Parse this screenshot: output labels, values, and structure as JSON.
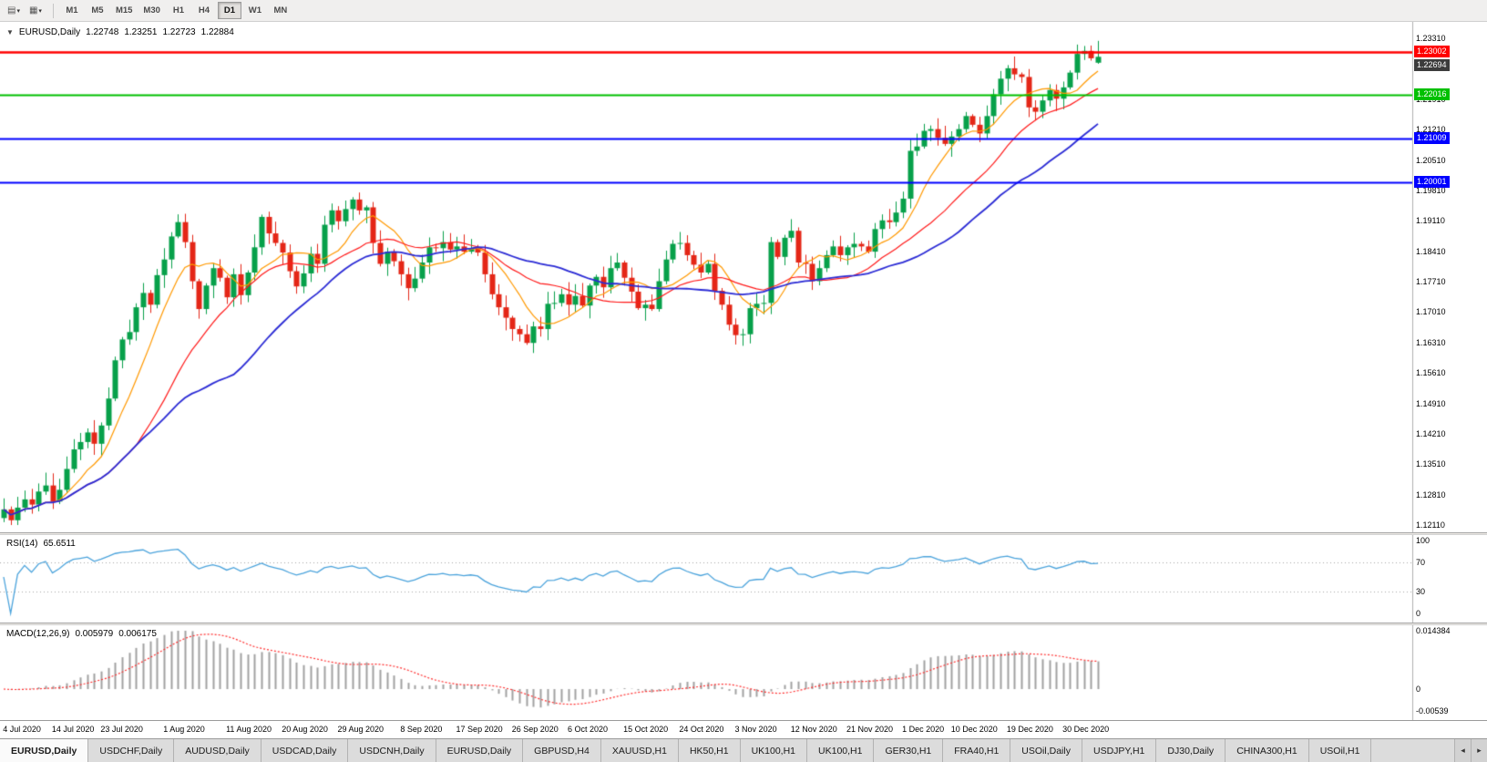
{
  "toolbar": {
    "timeframes": [
      "M1",
      "M5",
      "M15",
      "M30",
      "H1",
      "H4",
      "D1",
      "W1",
      "MN"
    ],
    "active": "D1"
  },
  "chart": {
    "symbol_label": "EURUSD,Daily",
    "ohlc": {
      "open": "1.22748",
      "high": "1.23251",
      "low": "1.22723",
      "close": "1.22884"
    },
    "price_axis": [
      "1.23310",
      "1.22610",
      "1.21910",
      "1.21210",
      "1.20510",
      "1.19810",
      "1.19110",
      "1.18410",
      "1.17710",
      "1.17010",
      "1.16310",
      "1.15610",
      "1.14910",
      "1.14210",
      "1.13510",
      "1.12810",
      "1.12110"
    ],
    "axis_badges": [
      {
        "label": "1.23002",
        "price": 1.23002,
        "color": "#ff0000",
        "kind": "resistance-line"
      },
      {
        "label": "1.22694",
        "price": 1.22694,
        "color": "#3c3c3c",
        "kind": "bid-price"
      },
      {
        "label": "1.22016",
        "price": 1.22016,
        "color": "#00c000",
        "kind": "support-line"
      },
      {
        "label": "1.21009",
        "price": 1.21009,
        "color": "#0000ff",
        "kind": "support-line"
      },
      {
        "label": "1.20001",
        "price": 1.20001,
        "color": "#0000ff",
        "kind": "support-line"
      }
    ]
  },
  "chart_data": {
    "type": "candlestick",
    "symbol": "EURUSD",
    "timeframe": "Daily",
    "ylim": [
      1.1211,
      1.2331
    ],
    "colors": {
      "up": "#07a04a",
      "down": "#e42617",
      "axis_border": "#b0b0b0"
    },
    "x_labels": [
      {
        "label": "4 Jul 2020",
        "index": 2
      },
      {
        "label": "14 Jul 2020",
        "index": 9
      },
      {
        "label": "23 Jul 2020",
        "index": 16
      },
      {
        "label": "1 Aug 2020",
        "index": 25
      },
      {
        "label": "11 Aug 2020",
        "index": 34
      },
      {
        "label": "20 Aug 2020",
        "index": 42
      },
      {
        "label": "29 Aug 2020",
        "index": 50
      },
      {
        "label": "8 Sep 2020",
        "index": 59
      },
      {
        "label": "17 Sep 2020",
        "index": 67
      },
      {
        "label": "26 Sep 2020",
        "index": 75
      },
      {
        "label": "6 Oct 2020",
        "index": 83
      },
      {
        "label": "15 Oct 2020",
        "index": 91
      },
      {
        "label": "24 Oct 2020",
        "index": 99
      },
      {
        "label": "3 Nov 2020",
        "index": 107
      },
      {
        "label": "12 Nov 2020",
        "index": 115
      },
      {
        "label": "21 Nov 2020",
        "index": 123
      },
      {
        "label": "1 Dec 2020",
        "index": 131
      },
      {
        "label": "10 Dec 2020",
        "index": 138
      },
      {
        "label": "19 Dec 2020",
        "index": 146
      },
      {
        "label": "30 Dec 2020",
        "index": 154
      }
    ],
    "closes": [
      1.1247,
      1.1222,
      1.1251,
      1.127,
      1.1258,
      1.1288,
      1.1302,
      1.1265,
      1.1292,
      1.134,
      1.1385,
      1.1402,
      1.1424,
      1.1398,
      1.144,
      1.1502,
      1.159,
      1.1638,
      1.1655,
      1.1712,
      1.1745,
      1.1718,
      1.1786,
      1.1822,
      1.1875,
      1.1908,
      1.1862,
      1.1772,
      1.1708,
      1.1762,
      1.1802,
      1.178,
      1.1735,
      1.1788,
      1.174,
      1.1792,
      1.185,
      1.192,
      1.1882,
      1.186,
      1.1838,
      1.1795,
      1.176,
      1.179,
      1.1835,
      1.1812,
      1.1902,
      1.1935,
      1.191,
      1.1938,
      1.196,
      1.1935,
      1.1942,
      1.186,
      1.1812,
      1.184,
      1.1818,
      1.1788,
      1.1756,
      1.1778,
      1.1815,
      1.185,
      1.1848,
      1.1862,
      1.1845,
      1.1852,
      1.184,
      1.1848,
      1.1838,
      1.1788,
      1.1742,
      1.1712,
      1.1688,
      1.1662,
      1.165,
      1.163,
      1.1668,
      1.1662,
      1.172,
      1.1722,
      1.1742,
      1.1718,
      1.1738,
      1.1716,
      1.1762,
      1.1782,
      1.1758,
      1.1802,
      1.1815,
      1.178,
      1.1748,
      1.171,
      1.1718,
      1.1708,
      1.1772,
      1.1822,
      1.1858,
      1.186,
      1.1832,
      1.181,
      1.1792,
      1.1812,
      1.175,
      1.1718,
      1.1672,
      1.1648,
      1.165,
      1.171,
      1.172,
      1.1722,
      1.1862,
      1.1828,
      1.1872,
      1.1888,
      1.1815,
      1.1812,
      1.1772,
      1.1802,
      1.1832,
      1.1852,
      1.1832,
      1.185,
      1.1858,
      1.1852,
      1.184,
      1.1892,
      1.1912,
      1.1908,
      1.193,
      1.1962,
      1.2072,
      1.2082,
      1.2118,
      1.2122,
      1.2102,
      1.2088,
      1.2105,
      1.2122,
      1.2152,
      1.2132,
      1.2112,
      1.2152,
      1.2202,
      1.2238,
      1.2262,
      1.2248,
      1.2242,
      1.2172,
      1.2162,
      1.2188,
      1.2212,
      1.2192,
      1.2218,
      1.2252,
      1.2295,
      1.2302,
      1.2285,
      1.22884
    ],
    "last_bar": {
      "open": 1.22748,
      "high": 1.23251,
      "low": 1.22723,
      "close": 1.22884
    },
    "horizontal_lines": [
      {
        "price": 1.23002,
        "color": "#ff0000",
        "width": 2.6
      },
      {
        "price": 1.22016,
        "color": "#00c000",
        "width": 2
      },
      {
        "price": 1.21009,
        "color": "#0000ff",
        "width": 2
      },
      {
        "price": 1.20001,
        "color": "#0000ff",
        "width": 2
      }
    ],
    "moving_averages": [
      {
        "name": "fast",
        "period": 8,
        "color": "#ff9900",
        "width": 1.2
      },
      {
        "name": "medium",
        "period": 20,
        "color": "#ff1a1a",
        "width": 1.2
      },
      {
        "name": "slow",
        "period": 34,
        "color": "#2b2bd5",
        "width": 1.8
      }
    ],
    "indicators": [
      {
        "type": "line",
        "name": "RSI",
        "params": "14",
        "displayed_value": "65.6511",
        "range": [
          0,
          100
        ],
        "levels": [
          70,
          30
        ]
      },
      {
        "type": "macd",
        "name": "MACD",
        "params": "12,26,9",
        "displayed_values": [
          "0.005979",
          "0.006175"
        ],
        "range": [
          -0.00539,
          0.014384
        ]
      }
    ]
  },
  "rsi": {
    "name": "RSI(14)",
    "value": "65.6511",
    "period": 14,
    "axis_labels": [
      "100",
      "70",
      "30",
      "0"
    ],
    "levels": [
      70,
      30
    ],
    "color": "#4aa3dc",
    "level_color": "#a9a9a9"
  },
  "macd": {
    "name": "MACD(12,26,9)",
    "value_main": "0.005979",
    "value_signal": "0.006175",
    "fast": 12,
    "slow": 26,
    "signal_period": 9,
    "axis_top": "0.014384",
    "axis_zero": "0",
    "axis_bottom": "-0.00539",
    "hist_color": "#a2a2a2",
    "signal_color": "#ff2d2d"
  },
  "tabs": {
    "items": [
      {
        "label": "EURUSD,Daily",
        "active": true
      },
      {
        "label": "USDCHF,Daily",
        "active": false
      },
      {
        "label": "AUDUSD,Daily",
        "active": false
      },
      {
        "label": "USDCAD,Daily",
        "active": false
      },
      {
        "label": "USDCNH,Daily",
        "active": false
      },
      {
        "label": "EURUSD,Daily",
        "active": false
      },
      {
        "label": "GBPUSD,H4",
        "active": false
      },
      {
        "label": "XAUUSD,H1",
        "active": false
      },
      {
        "label": "HK50,H1",
        "active": false
      },
      {
        "label": "UK100,H1",
        "active": false
      },
      {
        "label": "UK100,H1",
        "active": false
      },
      {
        "label": "GER30,H1",
        "active": false
      },
      {
        "label": "FRA40,H1",
        "active": false
      },
      {
        "label": "USOil,Daily",
        "active": false
      },
      {
        "label": "USDJPY,H1",
        "active": false
      },
      {
        "label": "DJ30,Daily",
        "active": false
      },
      {
        "label": "CHINA300,H1",
        "active": false
      },
      {
        "label": "USOil,H1",
        "active": false
      }
    ],
    "scroll_left": "◂",
    "scroll_right": "▸"
  }
}
